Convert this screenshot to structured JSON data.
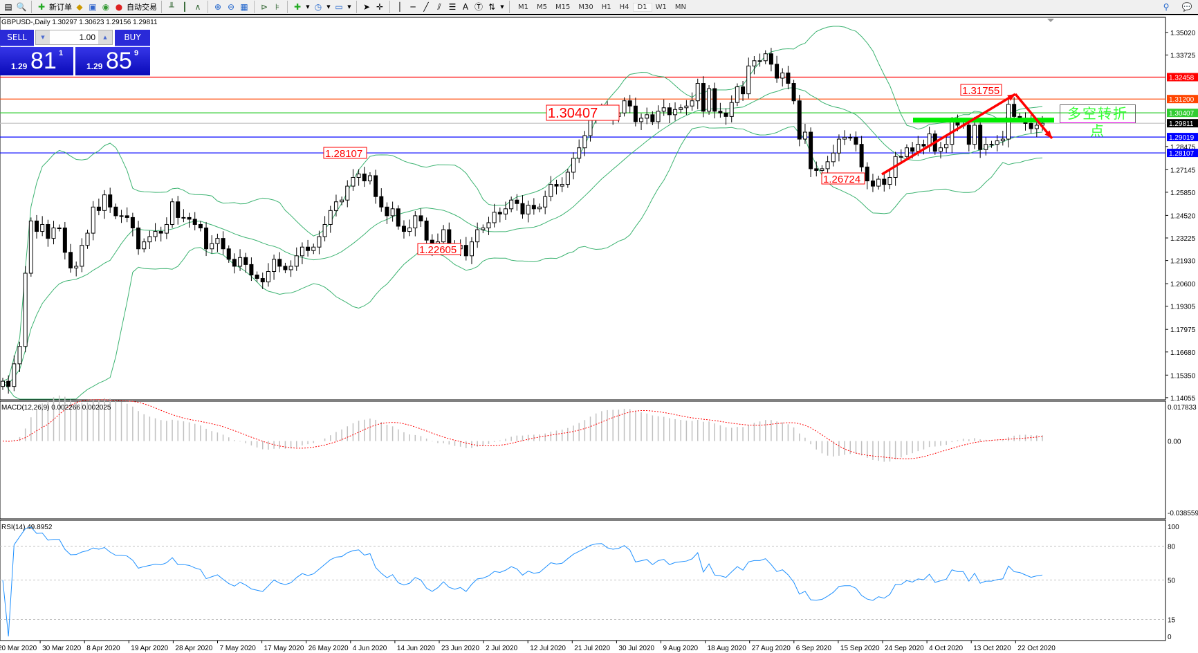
{
  "toolbar": {
    "new_order": "新订单",
    "auto_trading": "自动交易",
    "timeframes": [
      "M1",
      "M5",
      "M15",
      "M30",
      "H1",
      "H4",
      "D1",
      "W1",
      "MN"
    ],
    "active_timeframe": "D1"
  },
  "chart": {
    "title": "GBPUSD-,Daily  1.30297 1.30623 1.29156 1.29811"
  },
  "one_click": {
    "sell_label": "SELL",
    "buy_label": "BUY",
    "lot": "1.00",
    "sell_price": {
      "big": "1.29",
      "main": "81",
      "small": "1"
    },
    "buy_price": {
      "big": "1.29",
      "main": "85",
      "small": "9"
    }
  },
  "annotation_note": "多空转折点",
  "chart_data": {
    "type": "candlestick",
    "symbol": "GBPUSD-",
    "period": "Daily",
    "price_ticks": [
      "1.35020",
      "1.33725",
      "1.28475",
      "1.27145",
      "1.25850",
      "1.24520",
      "1.23225",
      "1.21930",
      "1.20600",
      "1.19305",
      "1.17975",
      "1.16680",
      "1.15350",
      "1.14055"
    ],
    "price_range": [
      1.14055,
      1.3502
    ],
    "date_labels": [
      "20 Mar 2020",
      "30 Mar 2020",
      "8 Apr 2020",
      "19 Apr 2020",
      "28 Apr 2020",
      "7 May 2020",
      "17 May 2020",
      "26 May 2020",
      "4 Jun 2020",
      "14 Jun 2020",
      "23 Jun 2020",
      "2 Jul 2020",
      "12 Jul 2020",
      "21 Jul 2020",
      "30 Jul 2020",
      "9 Aug 2020",
      "18 Aug 2020",
      "27 Aug 2020",
      "6 Sep 2020",
      "15 Sep 2020",
      "24 Sep 2020",
      "4 Oct 2020",
      "13 Oct 2020",
      "22 Oct 2020"
    ],
    "closes": [
      1.15,
      1.147,
      1.16,
      1.17,
      1.212,
      1.242,
      1.236,
      1.24,
      1.232,
      1.238,
      1.238,
      1.224,
      1.215,
      1.216,
      1.228,
      1.235,
      1.25,
      1.248,
      1.257,
      1.25,
      1.245,
      1.245,
      1.244,
      1.238,
      1.226,
      1.23,
      1.233,
      1.236,
      1.235,
      1.24,
      1.253,
      1.244,
      1.244,
      1.243,
      1.24,
      1.238,
      1.226,
      1.229,
      1.232,
      1.226,
      1.22,
      1.216,
      1.221,
      1.217,
      1.211,
      1.209,
      1.207,
      1.213,
      1.22,
      1.216,
      1.214,
      1.216,
      1.222,
      1.227,
      1.225,
      1.227,
      1.233,
      1.24,
      1.248,
      1.253,
      1.254,
      1.262,
      1.267,
      1.269,
      1.265,
      1.268,
      1.256,
      1.25,
      1.245,
      1.249,
      1.239,
      1.236,
      1.238,
      1.245,
      1.242,
      1.231,
      1.226,
      1.23,
      1.237,
      1.229,
      1.226,
      1.228,
      1.222,
      1.23,
      1.237,
      1.238,
      1.241,
      1.247,
      1.246,
      1.249,
      1.254,
      1.252,
      1.246,
      1.251,
      1.249,
      1.25,
      1.256,
      1.263,
      1.262,
      1.263,
      1.27,
      1.278,
      1.284,
      1.291,
      1.3,
      1.305,
      1.306,
      1.303,
      1.302,
      1.304,
      1.311,
      1.308,
      1.299,
      1.301,
      1.303,
      1.299,
      1.305,
      1.307,
      1.303,
      1.306,
      1.307,
      1.308,
      1.311,
      1.321,
      1.305,
      1.318,
      1.305,
      1.304,
      1.302,
      1.31,
      1.319,
      1.315,
      1.331,
      1.334,
      1.334,
      1.338,
      1.332,
      1.324,
      1.327,
      1.321,
      1.311,
      1.289,
      1.293,
      1.272,
      1.271,
      1.272,
      1.276,
      1.281,
      1.289,
      1.29,
      1.29,
      1.286,
      1.273,
      1.265,
      1.262,
      1.266,
      1.263,
      1.267,
      1.279,
      1.279,
      1.284,
      1.282,
      1.286,
      1.285,
      1.292,
      1.282,
      1.284,
      1.286,
      1.299,
      1.297,
      1.297,
      1.286,
      1.297,
      1.283,
      1.286,
      1.286,
      1.288,
      1.289,
      1.309,
      1.302,
      1.301,
      1.298,
      1.295,
      1.297,
      1.29811
    ],
    "horizontal_lines": [
      {
        "price": "1.32458",
        "color": "#ff0000"
      },
      {
        "price": "1.31200",
        "color": "#ff4500"
      },
      {
        "price": "1.30407",
        "color": "#32cd32"
      },
      {
        "price": "1.29811",
        "color": "#c0c0c0",
        "label_bg": "#000000"
      },
      {
        "price": "1.29019",
        "color": "#0000ff"
      },
      {
        "price": "1.28107",
        "color": "#0000ff"
      }
    ],
    "price_labels": [
      {
        "text": "1.30407",
        "bar": 104,
        "price": 1.30407,
        "big": true
      },
      {
        "text": "1.28107",
        "bar": 61,
        "price": 1.28107
      },
      {
        "text": "1.22605",
        "bar": 80,
        "price": 1.22605
      },
      {
        "text": "1.26724",
        "bar": 156,
        "price": 1.26724
      },
      {
        "text": "1.31755",
        "bar": 178,
        "price": 1.31755
      }
    ],
    "bollinger": {
      "period": 20,
      "deviation": 2,
      "color": "#3cb371"
    },
    "macd": {
      "label": "MACD(12,26,9) 0.002266 0.002025",
      "range": [
        -0.038559,
        0.017833
      ],
      "ticks": [
        "0.017833",
        "0.00",
        "-0.038559"
      ],
      "signal_color": "#ff0000",
      "hist_color": "#c0c0c0"
    },
    "rsi": {
      "label": "RSI(14) 49.8952",
      "levels": [
        "80",
        "50",
        "15"
      ],
      "ticks": [
        "100",
        "80",
        "50",
        "15",
        "0"
      ],
      "color": "#1e90ff"
    },
    "trend_color": "#ff0000",
    "pivot_bar_color": "#00ee00"
  }
}
